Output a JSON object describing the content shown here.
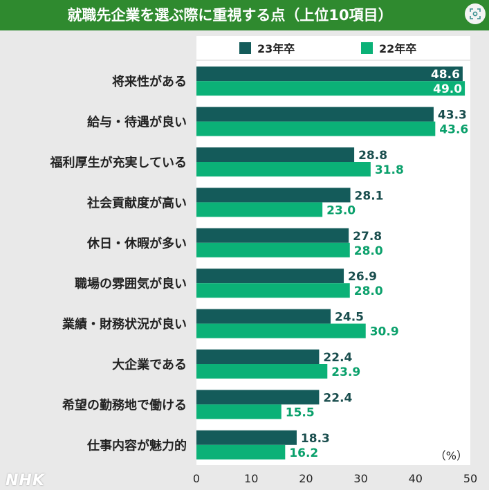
{
  "title": "就職先企業を選ぶ際に重視する点（上位10項目）",
  "watermark": "NHK",
  "lens_icon": "lens-icon",
  "colors": {
    "title_bg": "#2f8a2f",
    "series_23": "#145b5a",
    "series_22": "#0bb177",
    "label_23": "#1a4e4e",
    "label_22": "#0aa06b"
  },
  "chart_data": {
    "type": "bar",
    "orientation": "horizontal",
    "categories": [
      "将来性がある",
      "給与・待遇が良い",
      "福利厚生が充実している",
      "社会貢献度が高い",
      "休日・休暇が多い",
      "職場の雰囲気が良い",
      "業績・財務状況が良い",
      "大企業である",
      "希望の勤務地で働ける",
      "仕事内容が魅力的"
    ],
    "series": [
      {
        "name": "23年卒",
        "values": [
          48.6,
          43.3,
          28.8,
          28.1,
          27.8,
          26.9,
          24.5,
          22.4,
          22.4,
          18.3
        ]
      },
      {
        "name": "22年卒",
        "values": [
          49.0,
          43.6,
          31.8,
          23.0,
          28.0,
          28.0,
          30.9,
          23.9,
          15.5,
          16.2
        ]
      }
    ],
    "value_labels": [
      [
        "48.6",
        "43.3",
        "28.8",
        "28.1",
        "27.8",
        "26.9",
        "24.5",
        "22.4",
        "22.4",
        "18.3"
      ],
      [
        "49.0",
        "43.6",
        "31.8",
        "23.0",
        "28.0",
        "28.0",
        "30.9",
        "23.9",
        "15.5",
        "16.2"
      ]
    ],
    "xlim": [
      0,
      50
    ],
    "xticks": [
      "0",
      "10",
      "20",
      "30",
      "40",
      "50"
    ],
    "unit": "（%）",
    "legend_position": "top",
    "grid": false
  }
}
